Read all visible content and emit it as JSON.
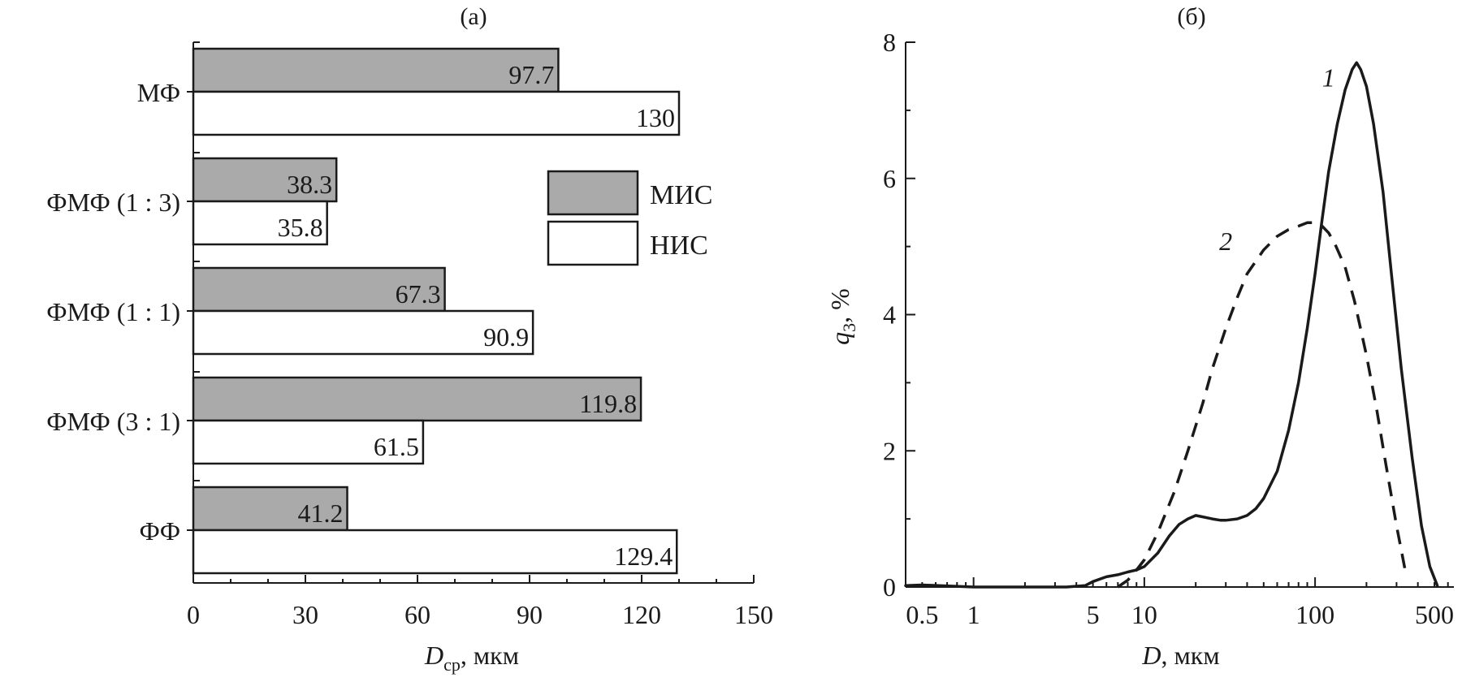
{
  "chart_data": [
    {
      "type": "bar",
      "panel_label": "(а)",
      "orientation": "horizontal",
      "categories": [
        "МФ",
        "ФМФ (1 : 3)",
        "ФМФ (1 : 1)",
        "ФМФ (3 : 1)",
        "ФФ"
      ],
      "series": [
        {
          "name": "МИС",
          "values": [
            97.7,
            38.3,
            67.3,
            119.8,
            41.2
          ],
          "labels": [
            "97.7",
            "38.3",
            "67.3",
            "119.8",
            "41.2"
          ],
          "color": "#aaaaaa"
        },
        {
          "name": "НИС",
          "values": [
            130,
            35.8,
            90.9,
            61.5,
            129.4
          ],
          "labels": [
            "130",
            "35.8",
            "90.9",
            "61.5",
            "129.4"
          ],
          "color": "#ffffff"
        }
      ],
      "xlabel_main": "D",
      "xlabel_sub": "ср",
      "xlabel_unit": ", мкм",
      "xlim": [
        0,
        150
      ],
      "xticks": [
        0,
        30,
        60,
        90,
        120,
        150
      ],
      "xtick_labels": [
        "0",
        "30",
        "60",
        "90",
        "120",
        "150"
      ],
      "legend_position": "right",
      "grid": false
    },
    {
      "type": "line",
      "panel_label": "(б)",
      "xscale": "log",
      "xlim": [
        0.4,
        650
      ],
      "ylim": [
        0,
        8
      ],
      "yticks": [
        0,
        2,
        4,
        6,
        8
      ],
      "ytick_labels": [
        "0",
        "2",
        "4",
        "6",
        "8"
      ],
      "xtick_labels": [
        {
          "value": 0.5,
          "label": "0.5"
        },
        {
          "value": 1,
          "label": "1"
        },
        {
          "value": 5,
          "label": "5"
        },
        {
          "value": 10,
          "label": "10"
        },
        {
          "value": 100,
          "label": "100"
        },
        {
          "value": 500,
          "label": "500"
        }
      ],
      "xlabel_main": "D",
      "xlabel_unit": ", мкм",
      "ylabel_main": "q",
      "ylabel_sub": "3",
      "ylabel_unit": ", %",
      "grid": false,
      "series": [
        {
          "name": "1",
          "style": "solid",
          "x": [
            0.4,
            0.5,
            1,
            2,
            3.5,
            4.5,
            5,
            6,
            7,
            8,
            9,
            10,
            12,
            14,
            16,
            18,
            20,
            22,
            25,
            28,
            30,
            35,
            40,
            45,
            50,
            60,
            70,
            80,
            90,
            100,
            110,
            120,
            135,
            150,
            165,
            175,
            185,
            200,
            220,
            250,
            280,
            320,
            370,
            420,
            470,
            520
          ],
          "y": [
            0.02,
            0.03,
            0,
            0,
            0,
            0.02,
            0.08,
            0.15,
            0.18,
            0.22,
            0.25,
            0.3,
            0.5,
            0.75,
            0.92,
            1.0,
            1.05,
            1.03,
            1.0,
            0.98,
            0.98,
            1.0,
            1.05,
            1.15,
            1.3,
            1.7,
            2.3,
            3.0,
            3.8,
            4.6,
            5.4,
            6.1,
            6.8,
            7.3,
            7.6,
            7.7,
            7.6,
            7.35,
            6.8,
            5.8,
            4.6,
            3.2,
            1.9,
            0.9,
            0.3,
            0.02
          ]
        },
        {
          "name": "2",
          "style": "dashed",
          "x": [
            7,
            8,
            9,
            10,
            12,
            15,
            18,
            22,
            25,
            30,
            35,
            40,
            50,
            60,
            70,
            80,
            90,
            100,
            110,
            120,
            130,
            150,
            170,
            200,
            230,
            260,
            300,
            340
          ],
          "y": [
            0,
            0.1,
            0.25,
            0.4,
            0.8,
            1.4,
            2.0,
            2.7,
            3.2,
            3.8,
            4.25,
            4.6,
            4.95,
            5.15,
            5.25,
            5.3,
            5.35,
            5.35,
            5.3,
            5.2,
            5.05,
            4.7,
            4.2,
            3.4,
            2.6,
            1.8,
            0.9,
            0.2
          ]
        }
      ],
      "curve_labels": [
        {
          "series": "1",
          "text": "1",
          "at_x": 120,
          "at_y": 7.35
        },
        {
          "series": "2",
          "text": "2",
          "at_x": 30,
          "at_y": 4.95
        }
      ]
    }
  ]
}
